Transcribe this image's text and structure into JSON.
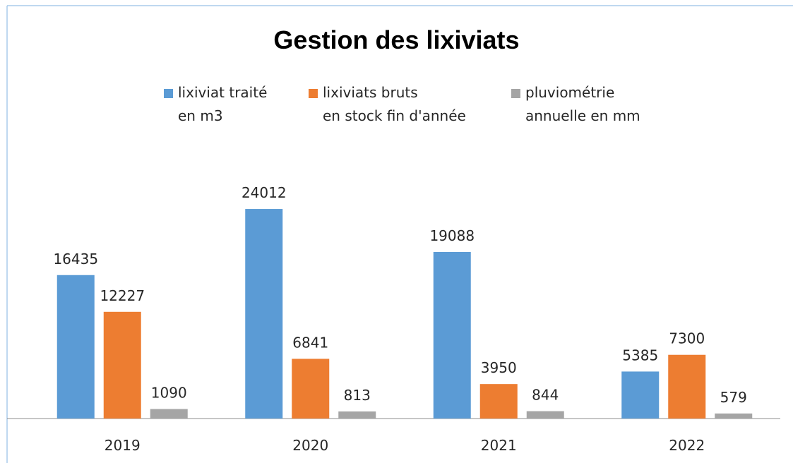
{
  "chart_data": {
    "type": "bar",
    "title": "Gestion des lixiviats",
    "categories": [
      "2019",
      "2020",
      "2021",
      "2022"
    ],
    "series": [
      {
        "name": "lixiviat traité\nen m3",
        "color": "#5b9bd5",
        "values": [
          16435,
          24012,
          19088,
          5385
        ]
      },
      {
        "name": "lixiviats bruts\nen stock fin d'année",
        "color": "#ed7d31",
        "values": [
          12227,
          6841,
          3950,
          7300
        ]
      },
      {
        "name": "pluviométrie\nannuelle en mm",
        "color": "#a5a5a5",
        "values": [
          1090,
          813,
          844,
          579
        ]
      }
    ],
    "ylim": [
      0,
      30000
    ]
  }
}
